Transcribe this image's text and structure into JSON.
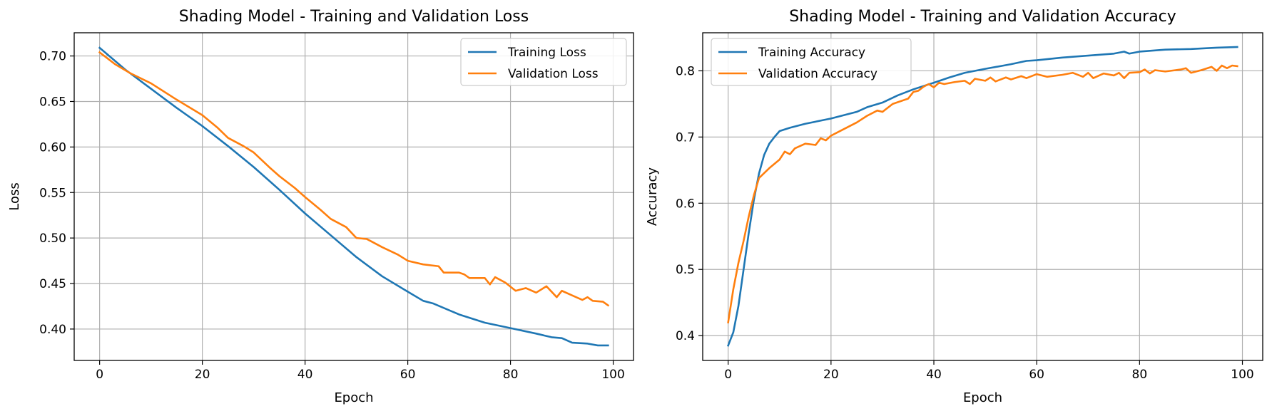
{
  "chart_data": [
    {
      "type": "line",
      "title": "Shading Model - Training and Validation Loss",
      "xlabel": "Epoch",
      "ylabel": "Loss",
      "xlim": [
        -4.95,
        103.95
      ],
      "ylim": [
        0.3655,
        0.7255
      ],
      "xticks": [
        0,
        20,
        40,
        60,
        80,
        100
      ],
      "xtick_labels": [
        "0",
        "20",
        "40",
        "60",
        "80",
        "100"
      ],
      "yticks": [
        0.4,
        0.45,
        0.5,
        0.55,
        0.6,
        0.65,
        0.7
      ],
      "ytick_labels": [
        "0.40",
        "0.45",
        "0.50",
        "0.55",
        "0.60",
        "0.65",
        "0.70"
      ],
      "grid": true,
      "legend_loc": "upper right",
      "series": [
        {
          "name": "Training Loss",
          "color": "#1f77b4",
          "points": [
            [
              0,
              0.709
            ],
            [
              5,
              0.685
            ],
            [
              10,
              0.664
            ],
            [
              15,
              0.643
            ],
            [
              20,
              0.623
            ],
            [
              25,
              0.601
            ],
            [
              30,
              0.578
            ],
            [
              35,
              0.553
            ],
            [
              40,
              0.527
            ],
            [
              45,
              0.503
            ],
            [
              50,
              0.479
            ],
            [
              55,
              0.458
            ],
            [
              60,
              0.441
            ],
            [
              63,
              0.431
            ],
            [
              65,
              0.428
            ],
            [
              70,
              0.416
            ],
            [
              75,
              0.407
            ],
            [
              80,
              0.401
            ],
            [
              85,
              0.395
            ],
            [
              88,
              0.391
            ],
            [
              90,
              0.39
            ],
            [
              92,
              0.385
            ],
            [
              95,
              0.384
            ],
            [
              97,
              0.382
            ],
            [
              99,
              0.382
            ]
          ]
        },
        {
          "name": "Validation Loss",
          "color": "#ff7f0e",
          "points": [
            [
              0,
              0.704
            ],
            [
              3,
              0.691
            ],
            [
              6,
              0.681
            ],
            [
              10,
              0.67
            ],
            [
              15,
              0.652
            ],
            [
              20,
              0.635
            ],
            [
              23,
              0.621
            ],
            [
              25,
              0.61
            ],
            [
              28,
              0.601
            ],
            [
              30,
              0.594
            ],
            [
              33,
              0.578
            ],
            [
              35,
              0.568
            ],
            [
              38,
              0.555
            ],
            [
              40,
              0.545
            ],
            [
              43,
              0.531
            ],
            [
              45,
              0.521
            ],
            [
              48,
              0.512
            ],
            [
              50,
              0.5
            ],
            [
              52,
              0.499
            ],
            [
              55,
              0.49
            ],
            [
              58,
              0.482
            ],
            [
              60,
              0.475
            ],
            [
              63,
              0.471
            ],
            [
              66,
              0.469
            ],
            [
              67,
              0.462
            ],
            [
              70,
              0.462
            ],
            [
              71,
              0.46
            ],
            [
              72,
              0.456
            ],
            [
              75,
              0.456
            ],
            [
              76,
              0.449
            ],
            [
              77,
              0.457
            ],
            [
              79,
              0.451
            ],
            [
              81,
              0.442
            ],
            [
              83,
              0.445
            ],
            [
              85,
              0.44
            ],
            [
              87,
              0.447
            ],
            [
              89,
              0.435
            ],
            [
              90,
              0.442
            ],
            [
              92,
              0.437
            ],
            [
              94,
              0.432
            ],
            [
              95,
              0.435
            ],
            [
              96,
              0.431
            ],
            [
              98,
              0.43
            ],
            [
              99,
              0.426
            ]
          ]
        }
      ]
    },
    {
      "type": "line",
      "title": "Shading Model - Training and Validation Accuracy",
      "xlabel": "Epoch",
      "ylabel": "Accuracy",
      "xlim": [
        -4.95,
        103.95
      ],
      "ylim": [
        0.3625,
        0.8575
      ],
      "xticks": [
        0,
        20,
        40,
        60,
        80,
        100
      ],
      "xtick_labels": [
        "0",
        "20",
        "40",
        "60",
        "80",
        "100"
      ],
      "yticks": [
        0.4,
        0.5,
        0.6,
        0.7,
        0.8
      ],
      "ytick_labels": [
        "0.4",
        "0.5",
        "0.6",
        "0.7",
        "0.8"
      ],
      "grid": true,
      "legend_loc": "upper left",
      "series": [
        {
          "name": "Training Accuracy",
          "color": "#1f77b4",
          "points": [
            [
              0,
              0.385
            ],
            [
              1,
              0.405
            ],
            [
              2,
              0.445
            ],
            [
              3,
              0.5
            ],
            [
              4,
              0.555
            ],
            [
              5,
              0.605
            ],
            [
              6,
              0.645
            ],
            [
              7,
              0.673
            ],
            [
              8,
              0.69
            ],
            [
              9,
              0.7
            ],
            [
              10,
              0.709
            ],
            [
              12,
              0.714
            ],
            [
              15,
              0.72
            ],
            [
              20,
              0.728
            ],
            [
              25,
              0.738
            ],
            [
              27,
              0.745
            ],
            [
              30,
              0.752
            ],
            [
              33,
              0.763
            ],
            [
              36,
              0.772
            ],
            [
              40,
              0.782
            ],
            [
              43,
              0.79
            ],
            [
              46,
              0.797
            ],
            [
              50,
              0.803
            ],
            [
              55,
              0.81
            ],
            [
              58,
              0.815
            ],
            [
              60,
              0.816
            ],
            [
              65,
              0.82
            ],
            [
              70,
              0.823
            ],
            [
              75,
              0.826
            ],
            [
              77,
              0.829
            ],
            [
              78,
              0.826
            ],
            [
              80,
              0.829
            ],
            [
              85,
              0.832
            ],
            [
              90,
              0.833
            ],
            [
              95,
              0.835
            ],
            [
              99,
              0.836
            ]
          ]
        },
        {
          "name": "Validation Accuracy",
          "color": "#ff7f0e",
          "points": [
            [
              0,
              0.42
            ],
            [
              1,
              0.47
            ],
            [
              2,
              0.51
            ],
            [
              3,
              0.543
            ],
            [
              4,
              0.58
            ],
            [
              5,
              0.612
            ],
            [
              6,
              0.638
            ],
            [
              8,
              0.653
            ],
            [
              10,
              0.666
            ],
            [
              11,
              0.678
            ],
            [
              12,
              0.674
            ],
            [
              13,
              0.683
            ],
            [
              15,
              0.69
            ],
            [
              17,
              0.688
            ],
            [
              18,
              0.698
            ],
            [
              19,
              0.695
            ],
            [
              20,
              0.702
            ],
            [
              22,
              0.71
            ],
            [
              25,
              0.722
            ],
            [
              27,
              0.732
            ],
            [
              29,
              0.74
            ],
            [
              30,
              0.738
            ],
            [
              32,
              0.75
            ],
            [
              35,
              0.758
            ],
            [
              36,
              0.768
            ],
            [
              37,
              0.77
            ],
            [
              38,
              0.776
            ],
            [
              39,
              0.78
            ],
            [
              40,
              0.775
            ],
            [
              41,
              0.782
            ],
            [
              42,
              0.78
            ],
            [
              44,
              0.783
            ],
            [
              46,
              0.785
            ],
            [
              47,
              0.78
            ],
            [
              48,
              0.788
            ],
            [
              50,
              0.785
            ],
            [
              51,
              0.79
            ],
            [
              52,
              0.784
            ],
            [
              54,
              0.79
            ],
            [
              55,
              0.787
            ],
            [
              57,
              0.792
            ],
            [
              58,
              0.789
            ],
            [
              60,
              0.795
            ],
            [
              62,
              0.791
            ],
            [
              65,
              0.794
            ],
            [
              67,
              0.797
            ],
            [
              69,
              0.791
            ],
            [
              70,
              0.797
            ],
            [
              71,
              0.789
            ],
            [
              73,
              0.796
            ],
            [
              75,
              0.793
            ],
            [
              76,
              0.797
            ],
            [
              77,
              0.789
            ],
            [
              78,
              0.797
            ],
            [
              80,
              0.798
            ],
            [
              81,
              0.802
            ],
            [
              82,
              0.796
            ],
            [
              83,
              0.801
            ],
            [
              85,
              0.799
            ],
            [
              87,
              0.801
            ],
            [
              88,
              0.802
            ],
            [
              89,
              0.804
            ],
            [
              90,
              0.797
            ],
            [
              92,
              0.801
            ],
            [
              94,
              0.806
            ],
            [
              95,
              0.8
            ],
            [
              96,
              0.808
            ],
            [
              97,
              0.804
            ],
            [
              98,
              0.808
            ],
            [
              99,
              0.807
            ]
          ]
        }
      ]
    }
  ]
}
